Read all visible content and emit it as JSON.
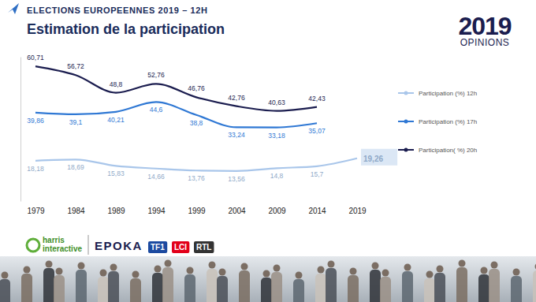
{
  "chart_data": {
    "type": "line",
    "subtitle": "ELECTIONS EUROPEENNES 2019 – 12H",
    "title": "Estimation de la participation",
    "categories": [
      "1979",
      "1984",
      "1989",
      "1994",
      "1999",
      "2004",
      "2009",
      "2014",
      "2019"
    ],
    "series": [
      {
        "name": "Participation (%) 12h",
        "color": "#a9c6ea",
        "line_style": "solid",
        "values": [
          18.18,
          18.69,
          15.83,
          14.66,
          13.76,
          13.56,
          14.8,
          15.7,
          19.26
        ],
        "value_labels": [
          "18,18",
          "18,69",
          "15,83",
          "14,66",
          "13,76",
          "13,56",
          "14,8",
          "15,7",
          "19,26"
        ]
      },
      {
        "name": "Participation (%) 17h",
        "color": "#2f78d4",
        "line_style": "solid",
        "values": [
          39.86,
          39.1,
          40.21,
          44.6,
          38.8,
          33.24,
          33.18,
          35.07,
          null
        ],
        "value_labels": [
          "39,86",
          "39,1",
          "40,21",
          "44,6",
          "38,8",
          "33,24",
          "33,18",
          "35,07",
          null
        ]
      },
      {
        "name": "Participation( %) 20h",
        "color": "#1b1d4f",
        "line_style": "solid",
        "values": [
          60.71,
          56.72,
          48.8,
          52.76,
          46.76,
          42.76,
          40.63,
          42.43,
          null
        ],
        "value_labels": [
          "60,71",
          "56,72",
          "48,8",
          "52,76",
          "46,76",
          "42,76",
          "40,63",
          "42,43",
          null
        ]
      }
    ],
    "ylim": [
      0,
      65
    ],
    "tick_labels": "x",
    "grid": false,
    "legend": "right",
    "data_labels": true,
    "marker": "none"
  },
  "logos": {
    "edition": {
      "year": "2019",
      "label": "OPINIONS"
    },
    "harris": [
      "harris",
      "interactive"
    ],
    "brands": [
      "EPOKA",
      "TF1",
      "LCI",
      "RTL"
    ]
  }
}
